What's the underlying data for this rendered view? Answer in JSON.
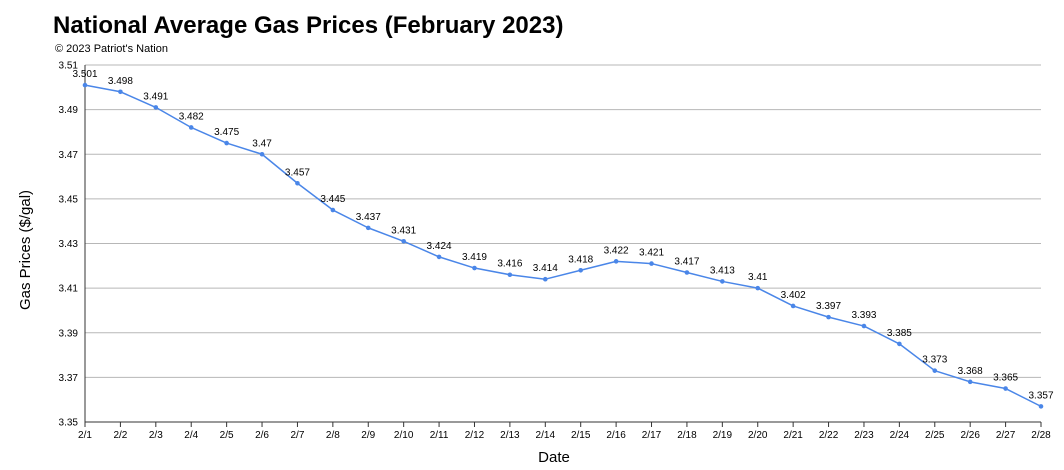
{
  "chart_data": {
    "type": "line",
    "title": "National Average Gas Prices (February 2023)",
    "subtitle": "© 2023 Patriot's Nation",
    "xlabel": "Date",
    "ylabel": "Gas Prices ($/gal)",
    "ylim": [
      3.35,
      3.51
    ],
    "yticks": [
      "3.35",
      "3.37",
      "3.39",
      "3.41",
      "3.43",
      "3.45",
      "3.47",
      "3.49",
      "3.51"
    ],
    "grid": true,
    "legend": "none",
    "line_color": "#4a86e8",
    "categories": [
      "2/1",
      "2/2",
      "2/3",
      "2/4",
      "2/5",
      "2/6",
      "2/7",
      "2/8",
      "2/9",
      "2/10",
      "2/11",
      "2/12",
      "2/13",
      "2/14",
      "2/15",
      "2/16",
      "2/17",
      "2/18",
      "2/19",
      "2/20",
      "2/21",
      "2/22",
      "2/23",
      "2/24",
      "2/25",
      "2/26",
      "2/27",
      "2/28"
    ],
    "values": [
      3.501,
      3.498,
      3.491,
      3.482,
      3.475,
      3.47,
      3.457,
      3.445,
      3.437,
      3.431,
      3.424,
      3.419,
      3.416,
      3.414,
      3.418,
      3.422,
      3.421,
      3.417,
      3.413,
      3.41,
      3.402,
      3.397,
      3.393,
      3.385,
      3.373,
      3.368,
      3.365,
      3.357
    ],
    "data_labels": [
      "3.501",
      "3.498",
      "3.491",
      "3.482",
      "3.475",
      "3.47",
      "3.457",
      "3.445",
      "3.437",
      "3.431",
      "3.424",
      "3.419",
      "3.416",
      "3.414",
      "3.418",
      "3.422",
      "3.421",
      "3.417",
      "3.413",
      "3.41",
      "3.402",
      "3.397",
      "3.393",
      "3.385",
      "3.373",
      "3.368",
      "3.365",
      "3.357"
    ]
  }
}
